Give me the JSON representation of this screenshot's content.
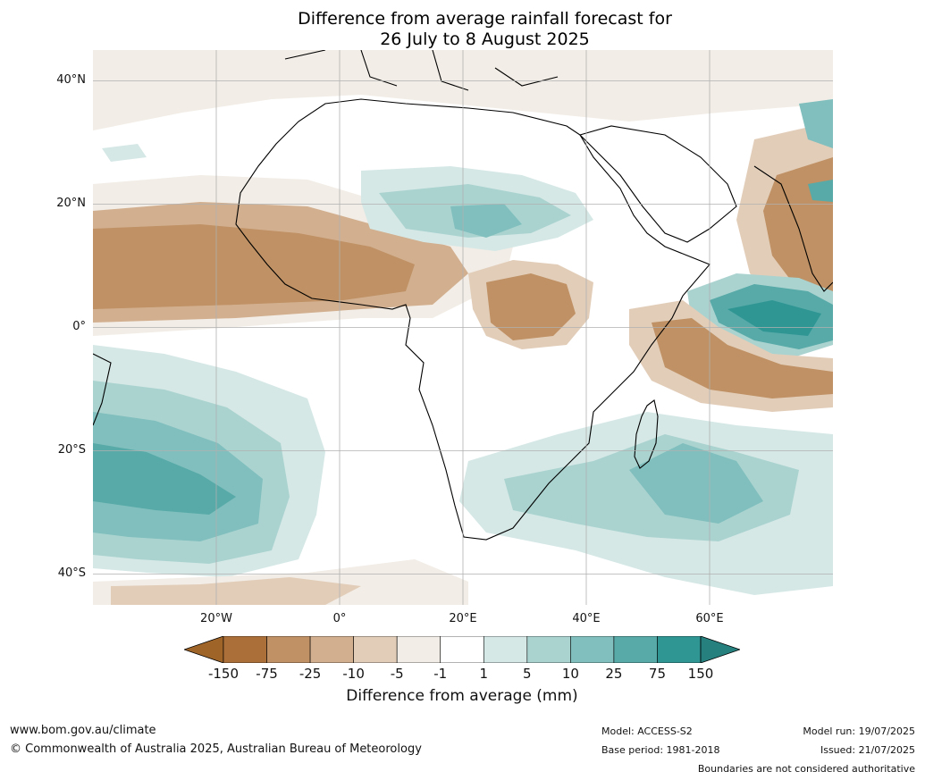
{
  "title": {
    "line1": "Difference from average rainfall forecast for",
    "line2": "26 July to 8 August 2025"
  },
  "map": {
    "region": "Africa and surrounding oceans",
    "lon_range": [
      -40,
      80
    ],
    "lat_range": [
      -45,
      45
    ],
    "lat_ticks": [
      "40°N",
      "20°N",
      "0°",
      "20°S",
      "40°S"
    ],
    "lon_ticks": [
      "20°W",
      "0°",
      "20°E",
      "40°E",
      "60°E"
    ],
    "gridlines": true
  },
  "colorbar": {
    "label": "Difference from average (mm)",
    "ticks": [
      "-150",
      "-75",
      "-25",
      "-10",
      "-5",
      "-1",
      "1",
      "5",
      "10",
      "25",
      "75",
      "150"
    ],
    "colors": [
      "#9f6428",
      "#ab703a",
      "#bf9164",
      "#d2af8f",
      "#e2cdb9",
      "#f2ede6",
      "#ffffff",
      "#d5e8e6",
      "#aad3d0",
      "#80bfbd",
      "#57aaa8",
      "#2f9694",
      "#25807e"
    ]
  },
  "footer": {
    "website": "www.bom.gov.au/climate",
    "copyright": "© Commonwealth of Australia 2025, Australian Bureau of Meteorology",
    "model": "Model: ACCESS-S2",
    "base_period": "Base period: 1981-2018",
    "model_run": "Model run: 19/07/2025",
    "issued": "Issued: 21/07/2025",
    "disclaimer": "Boundaries are not considered authoritative"
  }
}
